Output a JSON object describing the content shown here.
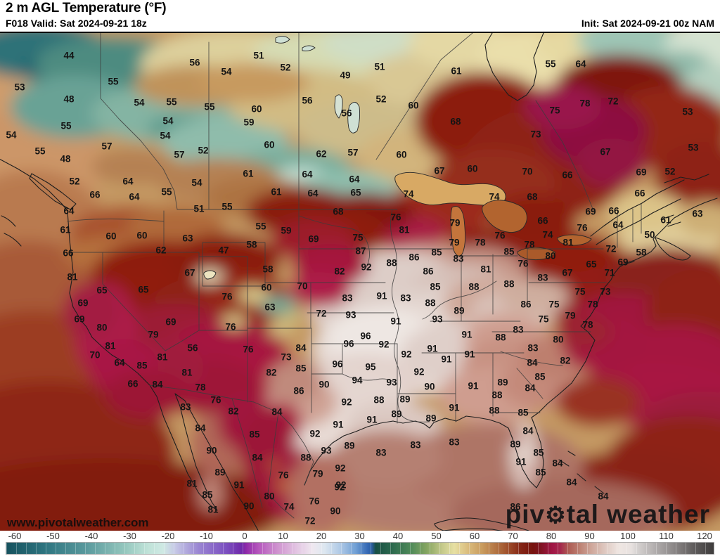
{
  "header": {
    "title": "2 m AGL Temperature (°F)",
    "valid": "F018 Valid: Sat 2024-09-21 18z",
    "init": "Init: Sat 2024-09-21 00z NAM"
  },
  "watermark": "www.pivotalweather.com",
  "logo": {
    "prefix": "piv",
    "gear": "⚙",
    "suffix": "tal weather"
  },
  "chart_data": {
    "type": "heatmap",
    "title": "2 m AGL Temperature (°F)",
    "units": "°F",
    "model": "NAM",
    "forecast_hour": "F018",
    "valid_time": "Sat 2024-09-21 18z",
    "init_time": "Sat 2024-09-21 00z",
    "colorbar": {
      "min": -60,
      "max": 120,
      "ticks": [
        -60,
        -50,
        -40,
        -30,
        -20,
        -10,
        0,
        10,
        20,
        30,
        40,
        50,
        60,
        70,
        80,
        90,
        100,
        110,
        120
      ],
      "stops": [
        [
          -60,
          "#16525e"
        ],
        [
          -50,
          "#2e7580"
        ],
        [
          -40,
          "#58989c"
        ],
        [
          -30,
          "#93c6bd"
        ],
        [
          -24,
          "#bfe2d8"
        ],
        [
          -20,
          "#cfe9e4"
        ],
        [
          -17,
          "#c6c8e6"
        ],
        [
          -11,
          "#9a85d2"
        ],
        [
          -4,
          "#7b4fc0"
        ],
        [
          0,
          "#6f28a8"
        ],
        [
          1,
          "#8f2aa8"
        ],
        [
          4,
          "#b455bc"
        ],
        [
          9,
          "#cf93cf"
        ],
        [
          14,
          "#e3c6e3"
        ],
        [
          18,
          "#efe8f0"
        ],
        [
          21,
          "#dde7f0"
        ],
        [
          25,
          "#afc9e6"
        ],
        [
          29,
          "#6f9ed4"
        ],
        [
          32,
          "#3468b4"
        ],
        [
          33,
          "#2b5d9e"
        ],
        [
          34,
          "#184f44"
        ],
        [
          38,
          "#2b684e"
        ],
        [
          43,
          "#4f8a59"
        ],
        [
          47,
          "#85a561"
        ],
        [
          51,
          "#c6ca8b"
        ],
        [
          54,
          "#e7e0a3"
        ],
        [
          57,
          "#dcc182"
        ],
        [
          61,
          "#c99c5e"
        ],
        [
          65,
          "#b06f3f"
        ],
        [
          68,
          "#9c4a28"
        ],
        [
          71,
          "#832415"
        ],
        [
          74,
          "#76130e"
        ],
        [
          76,
          "#7f1322"
        ],
        [
          79,
          "#a01646"
        ],
        [
          81,
          "#a4284c"
        ],
        [
          83,
          "#ad5a52"
        ],
        [
          86,
          "#bd8274"
        ],
        [
          89,
          "#cfa89c"
        ],
        [
          93,
          "#e2cfc8"
        ],
        [
          96,
          "#efe6e2"
        ],
        [
          99,
          "#e8e2e0"
        ],
        [
          101,
          "#d2cecd"
        ],
        [
          105,
          "#b2aeae"
        ],
        [
          110,
          "#8a8686"
        ],
        [
          115,
          "#5f5c5c"
        ],
        [
          120,
          "#3e3c3c"
        ]
      ]
    },
    "station_values": [
      [
        98,
        77,
        44
      ],
      [
        277,
        87,
        56
      ],
      [
        28,
        122,
        53
      ],
      [
        161,
        114,
        55
      ],
      [
        98,
        139,
        48
      ],
      [
        198,
        144,
        54
      ],
      [
        244,
        143,
        55
      ],
      [
        298,
        150,
        55
      ],
      [
        322,
        100,
        54
      ],
      [
        94,
        177,
        55
      ],
      [
        239,
        170,
        54
      ],
      [
        16,
        190,
        54
      ],
      [
        235,
        191,
        54
      ],
      [
        152,
        206,
        57
      ],
      [
        57,
        213,
        55
      ],
      [
        255,
        218,
        57
      ],
      [
        289,
        212,
        52
      ],
      [
        93,
        224,
        48
      ],
      [
        106,
        256,
        52
      ],
      [
        182,
        256,
        64
      ],
      [
        280,
        258,
        54
      ],
      [
        135,
        275,
        66
      ],
      [
        237,
        271,
        55
      ],
      [
        191,
        278,
        64
      ],
      [
        368,
        77,
        51
      ],
      [
        406,
        94,
        52
      ],
      [
        491,
        105,
        49
      ],
      [
        540,
        93,
        51
      ],
      [
        649,
        99,
        61
      ],
      [
        437,
        141,
        56
      ],
      [
        365,
        153,
        60
      ],
      [
        542,
        139,
        52
      ],
      [
        588,
        148,
        60
      ],
      [
        493,
        159,
        56
      ],
      [
        354,
        172,
        59
      ],
      [
        648,
        171,
        68
      ],
      [
        383,
        204,
        60
      ],
      [
        457,
        217,
        62
      ],
      [
        502,
        215,
        57
      ],
      [
        571,
        218,
        60
      ],
      [
        625,
        241,
        67
      ],
      [
        672,
        238,
        60
      ],
      [
        353,
        245,
        61
      ],
      [
        437,
        246,
        64
      ],
      [
        504,
        253,
        64
      ],
      [
        393,
        271,
        61
      ],
      [
        445,
        273,
        64
      ],
      [
        506,
        272,
        65
      ],
      [
        581,
        274,
        74
      ],
      [
        783,
        89,
        55
      ],
      [
        826,
        89,
        64
      ],
      [
        832,
        145,
        78
      ],
      [
        872,
        142,
        72
      ],
      [
        789,
        155,
        75
      ],
      [
        978,
        157,
        53
      ],
      [
        762,
        189,
        73
      ],
      [
        861,
        214,
        67
      ],
      [
        986,
        208,
        53
      ],
      [
        750,
        242,
        70
      ],
      [
        807,
        247,
        66
      ],
      [
        912,
        243,
        69
      ],
      [
        953,
        242,
        52
      ],
      [
        757,
        278,
        68
      ],
      [
        910,
        273,
        66
      ],
      [
        703,
        278,
        74
      ],
      [
        98,
        298,
        64
      ],
      [
        283,
        295,
        51
      ],
      [
        323,
        292,
        55
      ],
      [
        93,
        325,
        61
      ],
      [
        158,
        334,
        60
      ],
      [
        202,
        333,
        60
      ],
      [
        267,
        337,
        63
      ],
      [
        97,
        358,
        66
      ],
      [
        229,
        354,
        62
      ],
      [
        318,
        354,
        47
      ],
      [
        103,
        392,
        81
      ],
      [
        270,
        386,
        67
      ],
      [
        145,
        411,
        65
      ],
      [
        204,
        410,
        65
      ],
      [
        323,
        420,
        76
      ],
      [
        118,
        429,
        69
      ],
      [
        113,
        452,
        69
      ],
      [
        243,
        456,
        69
      ],
      [
        145,
        464,
        80
      ],
      [
        328,
        463,
        76
      ],
      [
        218,
        474,
        79
      ],
      [
        157,
        490,
        81
      ],
      [
        274,
        493,
        56
      ],
      [
        135,
        503,
        70
      ],
      [
        170,
        514,
        64
      ],
      [
        231,
        506,
        81
      ],
      [
        202,
        518,
        85
      ],
      [
        481,
        299,
        68
      ],
      [
        563,
        307,
        76
      ],
      [
        371,
        320,
        55
      ],
      [
        407,
        326,
        59
      ],
      [
        575,
        325,
        81
      ],
      [
        647,
        315,
        79
      ],
      [
        446,
        338,
        69
      ],
      [
        509,
        336,
        75
      ],
      [
        358,
        346,
        58
      ],
      [
        646,
        343,
        79
      ],
      [
        683,
        343,
        78
      ],
      [
        513,
        355,
        87
      ],
      [
        589,
        364,
        86
      ],
      [
        621,
        357,
        85
      ],
      [
        652,
        366,
        83
      ],
      [
        381,
        381,
        58
      ],
      [
        521,
        378,
        92
      ],
      [
        557,
        372,
        88
      ],
      [
        483,
        384,
        82
      ],
      [
        609,
        384,
        86
      ],
      [
        691,
        381,
        81
      ],
      [
        379,
        407,
        60
      ],
      [
        430,
        405,
        70
      ],
      [
        619,
        406,
        85
      ],
      [
        674,
        406,
        88
      ],
      [
        384,
        435,
        63
      ],
      [
        494,
        422,
        83
      ],
      [
        543,
        419,
        91
      ],
      [
        577,
        422,
        83
      ],
      [
        612,
        429,
        88
      ],
      [
        457,
        444,
        72
      ],
      [
        499,
        446,
        93
      ],
      [
        653,
        440,
        89
      ],
      [
        563,
        455,
        91
      ],
      [
        622,
        452,
        93
      ],
      [
        520,
        476,
        96
      ],
      [
        664,
        474,
        91
      ],
      [
        353,
        495,
        76
      ],
      [
        428,
        493,
        84
      ],
      [
        496,
        487,
        96
      ],
      [
        546,
        488,
        92
      ],
      [
        615,
        494,
        91
      ],
      [
        407,
        506,
        73
      ],
      [
        578,
        502,
        92
      ],
      [
        635,
        509,
        91
      ],
      [
        668,
        502,
        91
      ],
      [
        480,
        516,
        96
      ],
      [
        527,
        520,
        95
      ],
      [
        428,
        522,
        85
      ],
      [
        711,
        333,
        76
      ],
      [
        779,
        332,
        74
      ],
      [
        772,
        312,
        66
      ],
      [
        840,
        299,
        69
      ],
      [
        873,
        298,
        66
      ],
      [
        992,
        302,
        63
      ],
      [
        947,
        311,
        61
      ],
      [
        879,
        318,
        64
      ],
      [
        828,
        322,
        76
      ],
      [
        924,
        332,
        50
      ],
      [
        753,
        346,
        78
      ],
      [
        808,
        343,
        81
      ],
      [
        869,
        352,
        72
      ],
      [
        912,
        357,
        58
      ],
      [
        724,
        356,
        85
      ],
      [
        783,
        362,
        80
      ],
      [
        886,
        371,
        69
      ],
      [
        744,
        373,
        76
      ],
      [
        841,
        374,
        65
      ],
      [
        867,
        386,
        71
      ],
      [
        807,
        386,
        67
      ],
      [
        772,
        393,
        83
      ],
      [
        724,
        402,
        88
      ],
      [
        861,
        413,
        73
      ],
      [
        825,
        413,
        75
      ],
      [
        748,
        431,
        86
      ],
      [
        788,
        431,
        75
      ],
      [
        843,
        431,
        78
      ],
      [
        811,
        447,
        79
      ],
      [
        773,
        452,
        75
      ],
      [
        836,
        460,
        78
      ],
      [
        737,
        467,
        83
      ],
      [
        712,
        478,
        88
      ],
      [
        794,
        481,
        80
      ],
      [
        758,
        493,
        83
      ],
      [
        804,
        511,
        82
      ],
      [
        757,
        514,
        84
      ],
      [
        189,
        544,
        66
      ],
      [
        224,
        545,
        84
      ],
      [
        266,
        528,
        81
      ],
      [
        285,
        549,
        78
      ],
      [
        307,
        567,
        76
      ],
      [
        264,
        577,
        83
      ],
      [
        332,
        583,
        82
      ],
      [
        285,
        607,
        84
      ],
      [
        301,
        639,
        90
      ],
      [
        313,
        670,
        89
      ],
      [
        273,
        686,
        81
      ],
      [
        340,
        688,
        91
      ],
      [
        295,
        702,
        85
      ],
      [
        303,
        723,
        81
      ],
      [
        386,
        528,
        82
      ],
      [
        425,
        554,
        86
      ],
      [
        461,
        545,
        90
      ],
      [
        508,
        539,
        94
      ],
      [
        557,
        542,
        93
      ],
      [
        596,
        527,
        92
      ],
      [
        611,
        548,
        90
      ],
      [
        673,
        547,
        91
      ],
      [
        394,
        584,
        84
      ],
      [
        493,
        570,
        92
      ],
      [
        539,
        567,
        88
      ],
      [
        576,
        566,
        89
      ],
      [
        646,
        578,
        91
      ],
      [
        564,
        587,
        89
      ],
      [
        613,
        593,
        89
      ],
      [
        362,
        616,
        85
      ],
      [
        481,
        602,
        91
      ],
      [
        529,
        595,
        91
      ],
      [
        448,
        615,
        92
      ],
      [
        366,
        649,
        84
      ],
      [
        464,
        639,
        93
      ],
      [
        435,
        649,
        88
      ],
      [
        497,
        632,
        89
      ],
      [
        542,
        642,
        83
      ],
      [
        591,
        631,
        83
      ],
      [
        646,
        627,
        83
      ],
      [
        403,
        674,
        76
      ],
      [
        452,
        672,
        79
      ],
      [
        484,
        664,
        92
      ],
      [
        485,
        688,
        92
      ],
      [
        383,
        704,
        80
      ],
      [
        354,
        718,
        90
      ],
      [
        411,
        719,
        74
      ],
      [
        447,
        711,
        76
      ],
      [
        441,
        739,
        72
      ],
      [
        477,
        725,
        90
      ],
      [
        483,
        691,
        92
      ],
      [
        715,
        542,
        89
      ],
      [
        768,
        534,
        85
      ],
      [
        707,
        560,
        88
      ],
      [
        754,
        550,
        84
      ],
      [
        703,
        582,
        88
      ],
      [
        744,
        585,
        85
      ],
      [
        751,
        611,
        84
      ],
      [
        733,
        630,
        89
      ],
      [
        766,
        642,
        85
      ],
      [
        741,
        655,
        91
      ],
      [
        793,
        657,
        84
      ],
      [
        769,
        670,
        85
      ],
      [
        813,
        684,
        84
      ],
      [
        858,
        704,
        84
      ],
      [
        733,
        719,
        86
      ]
    ]
  }
}
